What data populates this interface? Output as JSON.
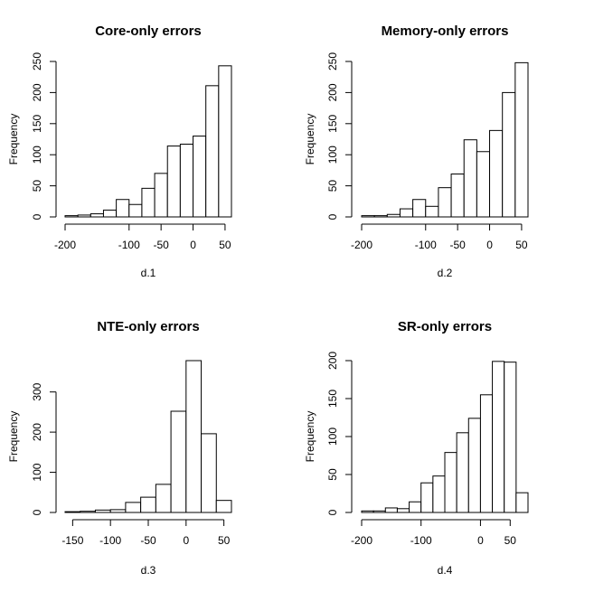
{
  "chart_data": [
    {
      "type": "bar",
      "title": "Core-only errors",
      "xlabel": "d.1",
      "ylabel": "Frequency",
      "bins": [
        [
          -200,
          -180
        ],
        [
          -180,
          -160
        ],
        [
          -160,
          -140
        ],
        [
          -140,
          -120
        ],
        [
          -120,
          -100
        ],
        [
          -100,
          -80
        ],
        [
          -80,
          -60
        ],
        [
          -60,
          -40
        ],
        [
          -40,
          -20
        ],
        [
          -20,
          0
        ],
        [
          0,
          20
        ],
        [
          20,
          40
        ],
        [
          40,
          60
        ]
      ],
      "values": [
        2,
        3,
        5,
        11,
        28,
        20,
        46,
        70,
        114,
        117,
        130,
        211,
        243
      ],
      "xlim": [
        -200,
        60
      ],
      "ylim": [
        0,
        250
      ],
      "xticks": [
        -200,
        -100,
        -50,
        0,
        50
      ],
      "xtick_labels": [
        "-200",
        "-100",
        "-50",
        "0",
        "50"
      ],
      "yticks": [
        0,
        50,
        100,
        150,
        200,
        250
      ],
      "ytick_labels": [
        "0",
        "50",
        "100",
        "150",
        "200",
        "250"
      ]
    },
    {
      "type": "bar",
      "title": "Memory-only errors",
      "xlabel": "d.2",
      "ylabel": "Frequency",
      "bins": [
        [
          -200,
          -180
        ],
        [
          -180,
          -160
        ],
        [
          -160,
          -140
        ],
        [
          -140,
          -120
        ],
        [
          -120,
          -100
        ],
        [
          -100,
          -80
        ],
        [
          -80,
          -60
        ],
        [
          -60,
          -40
        ],
        [
          -40,
          -20
        ],
        [
          -20,
          0
        ],
        [
          0,
          20
        ],
        [
          20,
          40
        ],
        [
          40,
          60
        ]
      ],
      "values": [
        2,
        2,
        4,
        13,
        28,
        17,
        47,
        69,
        124,
        105,
        139,
        200,
        248
      ],
      "xlim": [
        -200,
        60
      ],
      "ylim": [
        0,
        250
      ],
      "xticks": [
        -200,
        -100,
        -50,
        0,
        50
      ],
      "xtick_labels": [
        "-200",
        "-100",
        "-50",
        "0",
        "50"
      ],
      "yticks": [
        0,
        50,
        100,
        150,
        200,
        250
      ],
      "ytick_labels": [
        "0",
        "50",
        "100",
        "150",
        "200",
        "250"
      ]
    },
    {
      "type": "bar",
      "title": "NTE-only errors",
      "xlabel": "d.3",
      "ylabel": "Frequency",
      "bins": [
        [
          -160,
          -140
        ],
        [
          -140,
          -120
        ],
        [
          -120,
          -100
        ],
        [
          -100,
          -80
        ],
        [
          -80,
          -60
        ],
        [
          -60,
          -40
        ],
        [
          -40,
          -20
        ],
        [
          -20,
          0
        ],
        [
          0,
          20
        ],
        [
          20,
          40
        ],
        [
          40,
          60
        ]
      ],
      "values": [
        2,
        3,
        6,
        7,
        25,
        38,
        70,
        252,
        378,
        196,
        30
      ],
      "xlim": [
        -160,
        60
      ],
      "ylim": [
        0,
        378
      ],
      "xticks": [
        -150,
        -100,
        -50,
        0,
        50
      ],
      "xtick_labels": [
        "-150",
        "-100",
        "-50",
        "0",
        "50"
      ],
      "yticks": [
        0,
        100,
        200,
        300
      ],
      "ytick_labels": [
        "0",
        "100",
        "200",
        "300"
      ]
    },
    {
      "type": "bar",
      "title": "SR-only errors",
      "xlabel": "d.4",
      "ylabel": "Frequency",
      "bins": [
        [
          -200,
          -180
        ],
        [
          -180,
          -160
        ],
        [
          -160,
          -140
        ],
        [
          -140,
          -120
        ],
        [
          -120,
          -100
        ],
        [
          -100,
          -80
        ],
        [
          -80,
          -60
        ],
        [
          -60,
          -40
        ],
        [
          -40,
          -20
        ],
        [
          -20,
          0
        ],
        [
          0,
          20
        ],
        [
          20,
          40
        ],
        [
          40,
          60
        ],
        [
          60,
          80
        ]
      ],
      "values": [
        2,
        2,
        6,
        5,
        14,
        39,
        48,
        79,
        105,
        124,
        155,
        199,
        198,
        26
      ],
      "xlim": [
        -200,
        80
      ],
      "ylim": [
        0,
        200
      ],
      "xticks": [
        -200,
        -100,
        0,
        50
      ],
      "xtick_labels": [
        "-200",
        "-100",
        "0",
        "50"
      ],
      "yticks": [
        0,
        50,
        100,
        150,
        200
      ],
      "ytick_labels": [
        "0",
        "50",
        "100",
        "150",
        "200"
      ]
    }
  ]
}
